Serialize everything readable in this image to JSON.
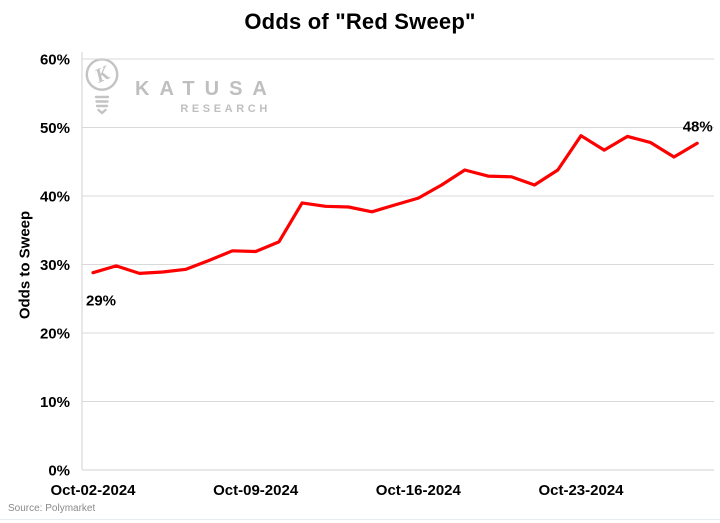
{
  "title": "Odds of \"Red Sweep\"",
  "source": "Source: Polymarket",
  "watermark": {
    "brand": "KATUSA",
    "sub": "RESEARCH",
    "icon": "lightbulb-k-icon",
    "color": "#bfbfbf"
  },
  "colors": {
    "line": "#fe0000",
    "grid": "#d9d9d9",
    "axis": "#d9d9d9",
    "text": "#000000",
    "source_text": "#8a8a8a"
  },
  "chart_data": {
    "type": "line",
    "title": "Odds of \"Red Sweep\"",
    "ylabel": "Odds to Sweep",
    "xlabel": "",
    "ylim": [
      0,
      60
    ],
    "ytick_step": 10,
    "ytick_suffix": "%",
    "grid": "horizontal",
    "legend": "none",
    "x": [
      "Oct-02-2024",
      "Oct-03-2024",
      "Oct-04-2024",
      "Oct-05-2024",
      "Oct-06-2024",
      "Oct-07-2024",
      "Oct-08-2024",
      "Oct-09-2024",
      "Oct-10-2024",
      "Oct-11-2024",
      "Oct-12-2024",
      "Oct-13-2024",
      "Oct-14-2024",
      "Oct-15-2024",
      "Oct-16-2024",
      "Oct-17-2024",
      "Oct-18-2024",
      "Oct-19-2024",
      "Oct-20-2024",
      "Oct-21-2024",
      "Oct-22-2024",
      "Oct-23-2024",
      "Oct-24-2024",
      "Oct-25-2024",
      "Oct-26-2024",
      "Oct-27-2024",
      "Oct-28-2024"
    ],
    "values": [
      28.8,
      29.8,
      28.7,
      28.9,
      29.3,
      30.6,
      32.0,
      31.9,
      33.3,
      39.0,
      38.5,
      38.4,
      37.7,
      38.7,
      39.7,
      41.6,
      43.8,
      42.9,
      42.8,
      41.6,
      43.8,
      48.8,
      46.7,
      48.7,
      47.8,
      45.7,
      47.7
    ],
    "xticks": [
      "Oct-02-2024",
      "Oct-09-2024",
      "Oct-16-2024",
      "Oct-23-2024"
    ],
    "annotations": [
      {
        "text": "29%",
        "x_index": 0,
        "placement": "below-start"
      },
      {
        "text": "48%",
        "x_index": 26,
        "placement": "above-end"
      }
    ]
  }
}
